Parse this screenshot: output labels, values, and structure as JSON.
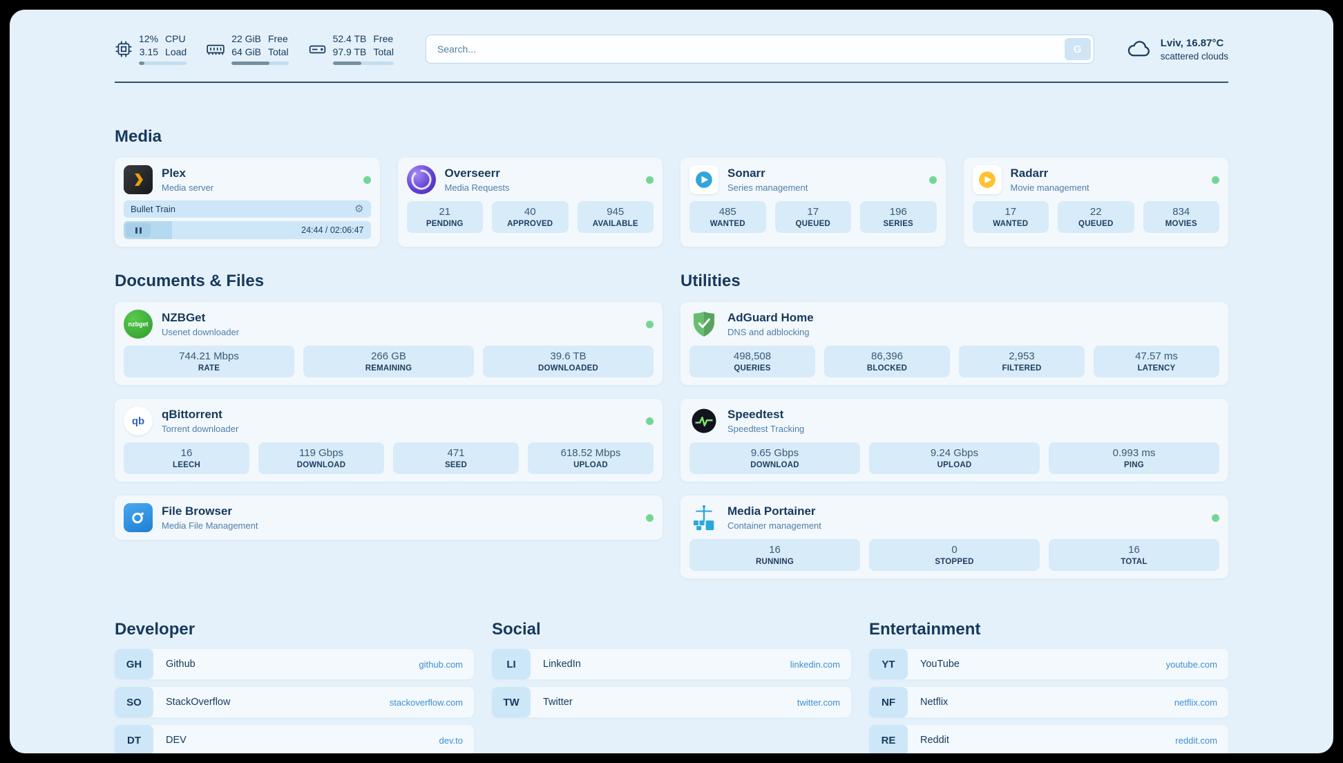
{
  "theme": {
    "background": "#e5f1fa",
    "card": "#f0f8fd",
    "stat_box": "#d7ebf9",
    "text": "#16395c",
    "subtitle": "#4e7ea8",
    "link": "#3d8fd3",
    "status_online": "#74d695",
    "plex_brand": "#e5a00d",
    "sonarr_brand": "#33a4dc",
    "radarr_brand": "#ffc230"
  },
  "topbar": {
    "cpu": {
      "value_top": "12%",
      "value_bottom": "3.15",
      "label_top": "CPU",
      "label_bottom": "Load",
      "progress": 12
    },
    "ram": {
      "value_top": "22 GiB",
      "value_bottom": "64 GiB",
      "label_top": "Free",
      "label_bottom": "Total",
      "progress": 66
    },
    "disk": {
      "value_top": "52.4 TB",
      "value_bottom": "97.9 TB",
      "label_top": "Free",
      "label_bottom": "Total",
      "progress": 47
    },
    "search": {
      "placeholder": "Search...",
      "button_label": "G"
    },
    "weather": {
      "location": "Lviv, 16.87°C",
      "condition": "scattered clouds"
    }
  },
  "sections": {
    "media": {
      "title": "Media"
    },
    "documents": {
      "title": "Documents & Files"
    },
    "utilities": {
      "title": "Utilities"
    }
  },
  "services": {
    "plex": {
      "name": "Plex",
      "subtitle": "Media server",
      "status": "online",
      "now_playing": "Bullet Train",
      "time": "24:44 / 02:06:47",
      "progress_percent": 19.5
    },
    "overseerr": {
      "name": "Overseerr",
      "subtitle": "Media Requests",
      "status": "online",
      "stats": [
        {
          "value": "21",
          "label": "PENDING"
        },
        {
          "value": "40",
          "label": "APPROVED"
        },
        {
          "value": "945",
          "label": "AVAILABLE"
        }
      ]
    },
    "sonarr": {
      "name": "Sonarr",
      "subtitle": "Series management",
      "status": "online",
      "stats": [
        {
          "value": "485",
          "label": "WANTED"
        },
        {
          "value": "17",
          "label": "QUEUED"
        },
        {
          "value": "196",
          "label": "SERIES"
        }
      ]
    },
    "radarr": {
      "name": "Radarr",
      "subtitle": "Movie management",
      "status": "online",
      "stats": [
        {
          "value": "17",
          "label": "WANTED"
        },
        {
          "value": "22",
          "label": "QUEUED"
        },
        {
          "value": "834",
          "label": "MOVIES"
        }
      ]
    },
    "nzbget": {
      "name": "NZBGet",
      "subtitle": "Usenet downloader",
      "status": "online",
      "icon_text": "nzbget",
      "stats": [
        {
          "value": "744.21 Mbps",
          "label": "RATE"
        },
        {
          "value": "266 GB",
          "label": "REMAINING"
        },
        {
          "value": "39.6 TB",
          "label": "DOWNLOADED"
        }
      ]
    },
    "qbittorrent": {
      "name": "qBittorrent",
      "subtitle": "Torrent downloader",
      "status": "online",
      "icon_text": "qb",
      "stats": [
        {
          "value": "16",
          "label": "LEECH"
        },
        {
          "value": "119 Gbps",
          "label": "DOWNLOAD"
        },
        {
          "value": "471",
          "label": "SEED"
        },
        {
          "value": "618.52 Mbps",
          "label": "UPLOAD"
        }
      ]
    },
    "filebrowser": {
      "name": "File Browser",
      "subtitle": "Media File Management",
      "status": "online"
    },
    "adguard": {
      "name": "AdGuard Home",
      "subtitle": "DNS and adblocking",
      "stats": [
        {
          "value": "498,508",
          "label": "QUERIES"
        },
        {
          "value": "86,396",
          "label": "BLOCKED"
        },
        {
          "value": "2,953",
          "label": "FILTERED"
        },
        {
          "value": "47.57 ms",
          "label": "LATENCY"
        }
      ]
    },
    "speedtest": {
      "name": "Speedtest",
      "subtitle": "Speedtest Tracking",
      "stats": [
        {
          "value": "9.65 Gbps",
          "label": "DOWNLOAD"
        },
        {
          "value": "9.24 Gbps",
          "label": "UPLOAD"
        },
        {
          "value": "0.993 ms",
          "label": "PING"
        }
      ]
    },
    "portainer": {
      "name": "Media Portainer",
      "subtitle": "Container management",
      "status": "online",
      "stats": [
        {
          "value": "16",
          "label": "RUNNING"
        },
        {
          "value": "0",
          "label": "STOPPED"
        },
        {
          "value": "16",
          "label": "TOTAL"
        }
      ]
    }
  },
  "bookmarks": {
    "developer": {
      "title": "Developer",
      "items": [
        {
          "abbr": "GH",
          "name": "Github",
          "url": "github.com"
        },
        {
          "abbr": "SO",
          "name": "StackOverflow",
          "url": "stackoverflow.com"
        },
        {
          "abbr": "DT",
          "name": "DEV",
          "url": "dev.to"
        }
      ]
    },
    "social": {
      "title": "Social",
      "items": [
        {
          "abbr": "LI",
          "name": "LinkedIn",
          "url": "linkedin.com"
        },
        {
          "abbr": "TW",
          "name": "Twitter",
          "url": "twitter.com"
        }
      ]
    },
    "entertainment": {
      "title": "Entertainment",
      "items": [
        {
          "abbr": "YT",
          "name": "YouTube",
          "url": "youtube.com"
        },
        {
          "abbr": "NF",
          "name": "Netflix",
          "url": "netflix.com"
        },
        {
          "abbr": "RE",
          "name": "Reddit",
          "url": "reddit.com"
        }
      ]
    }
  }
}
